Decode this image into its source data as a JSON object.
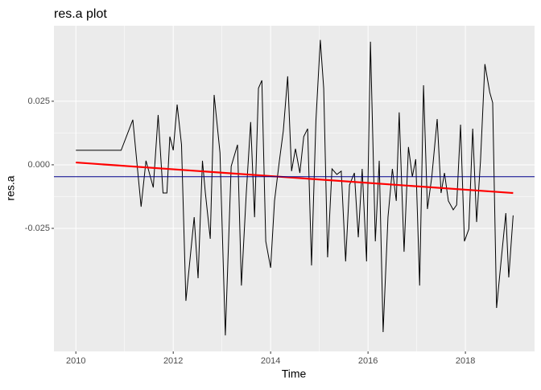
{
  "chart_data": {
    "type": "line",
    "title": "res.a plot",
    "x_label": "Time",
    "y_label": "res.a",
    "xlim": [
      2009.55,
      2019.42
    ],
    "xticks": [
      2010,
      2012,
      2014,
      2016,
      2018
    ],
    "ylim": [
      -0.0734,
      0.0547
    ],
    "yticks": [
      {
        "value": -0.025,
        "label": "-0.025"
      },
      {
        "value": 0,
        "label": "0.000"
      },
      {
        "value": 0.025,
        "label": "0.025"
      }
    ],
    "grid": true,
    "series": [
      {
        "color": "#000000",
        "width": 1,
        "x": [
          2010.0,
          2010.93,
          2011.17,
          2011.34,
          2011.44,
          2011.59,
          2011.69,
          2011.79,
          2011.87,
          2011.93,
          2012.0,
          2012.08,
          2012.17,
          2012.26,
          2012.43,
          2012.51,
          2012.6,
          2012.66,
          2012.76,
          2012.84,
          2012.96,
          2013.07,
          2013.19,
          2013.32,
          2013.4,
          2013.5,
          2013.59,
          2013.67,
          2013.75,
          2013.82,
          2013.9,
          2014.0,
          2014.08,
          2014.18,
          2014.26,
          2014.35,
          2014.43,
          2014.51,
          2014.6,
          2014.68,
          2014.76,
          2014.84,
          2014.93,
          2015.02,
          2015.09,
          2015.17,
          2015.26,
          2015.36,
          2015.45,
          2015.54,
          2015.62,
          2015.72,
          2015.8,
          2015.88,
          2015.97,
          2016.05,
          2016.15,
          2016.23,
          2016.31,
          2016.41,
          2016.5,
          2016.58,
          2016.64,
          2016.74,
          2016.83,
          2016.91,
          2016.98,
          2017.06,
          2017.14,
          2017.22,
          2017.31,
          2017.42,
          2017.5,
          2017.57,
          2017.65,
          2017.75,
          2017.82,
          2017.9,
          2017.98,
          2018.07,
          2018.15,
          2018.23,
          2018.31,
          2018.4,
          2018.5,
          2018.56,
          2018.64,
          2018.74,
          2018.83,
          2018.89,
          2018.98
        ],
        "values": [
          0.0057,
          0.0057,
          0.0177,
          -0.0165,
          0.0016,
          -0.0089,
          0.0196,
          -0.0111,
          -0.0111,
          0.0111,
          0.0057,
          0.0237,
          0.0079,
          -0.0535,
          -0.0206,
          -0.0446,
          0.0016,
          -0.0111,
          -0.0291,
          0.0275,
          0.0047,
          -0.0671,
          -0.0006,
          0.0079,
          -0.0475,
          -0.0111,
          0.0168,
          -0.0206,
          0.0301,
          0.0332,
          -0.0301,
          -0.0405,
          -0.0142,
          0.0016,
          0.0133,
          0.0348,
          -0.0025,
          0.0063,
          -0.0032,
          0.0111,
          0.0142,
          -0.0396,
          0.0174,
          0.0491,
          0.0301,
          -0.0364,
          -0.0016,
          -0.0038,
          -0.0025,
          -0.038,
          -0.0079,
          -0.0032,
          -0.0285,
          -0.0016,
          -0.038,
          0.0484,
          -0.0301,
          0.0016,
          -0.0658,
          -0.0206,
          -0.0016,
          -0.0142,
          0.0206,
          -0.0342,
          0.007,
          -0.0047,
          0.0022,
          -0.0475,
          0.0313,
          -0.0174,
          -0.0047,
          0.018,
          -0.0111,
          -0.0032,
          -0.0142,
          -0.0177,
          -0.0158,
          0.0158,
          -0.0301,
          -0.0253,
          0.0142,
          -0.0225,
          0.0016,
          0.0396,
          0.0285,
          0.0244,
          -0.0563,
          -0.0364,
          -0.019,
          -0.0443,
          -0.0199
        ]
      },
      {
        "color": "#ff0000",
        "width": 2.2,
        "x": [
          2010.0,
          2018.98
        ],
        "values": [
          0.0009,
          -0.0111
        ]
      }
    ],
    "reference_line": {
      "value": -0.0047,
      "color": "#00008b"
    }
  }
}
